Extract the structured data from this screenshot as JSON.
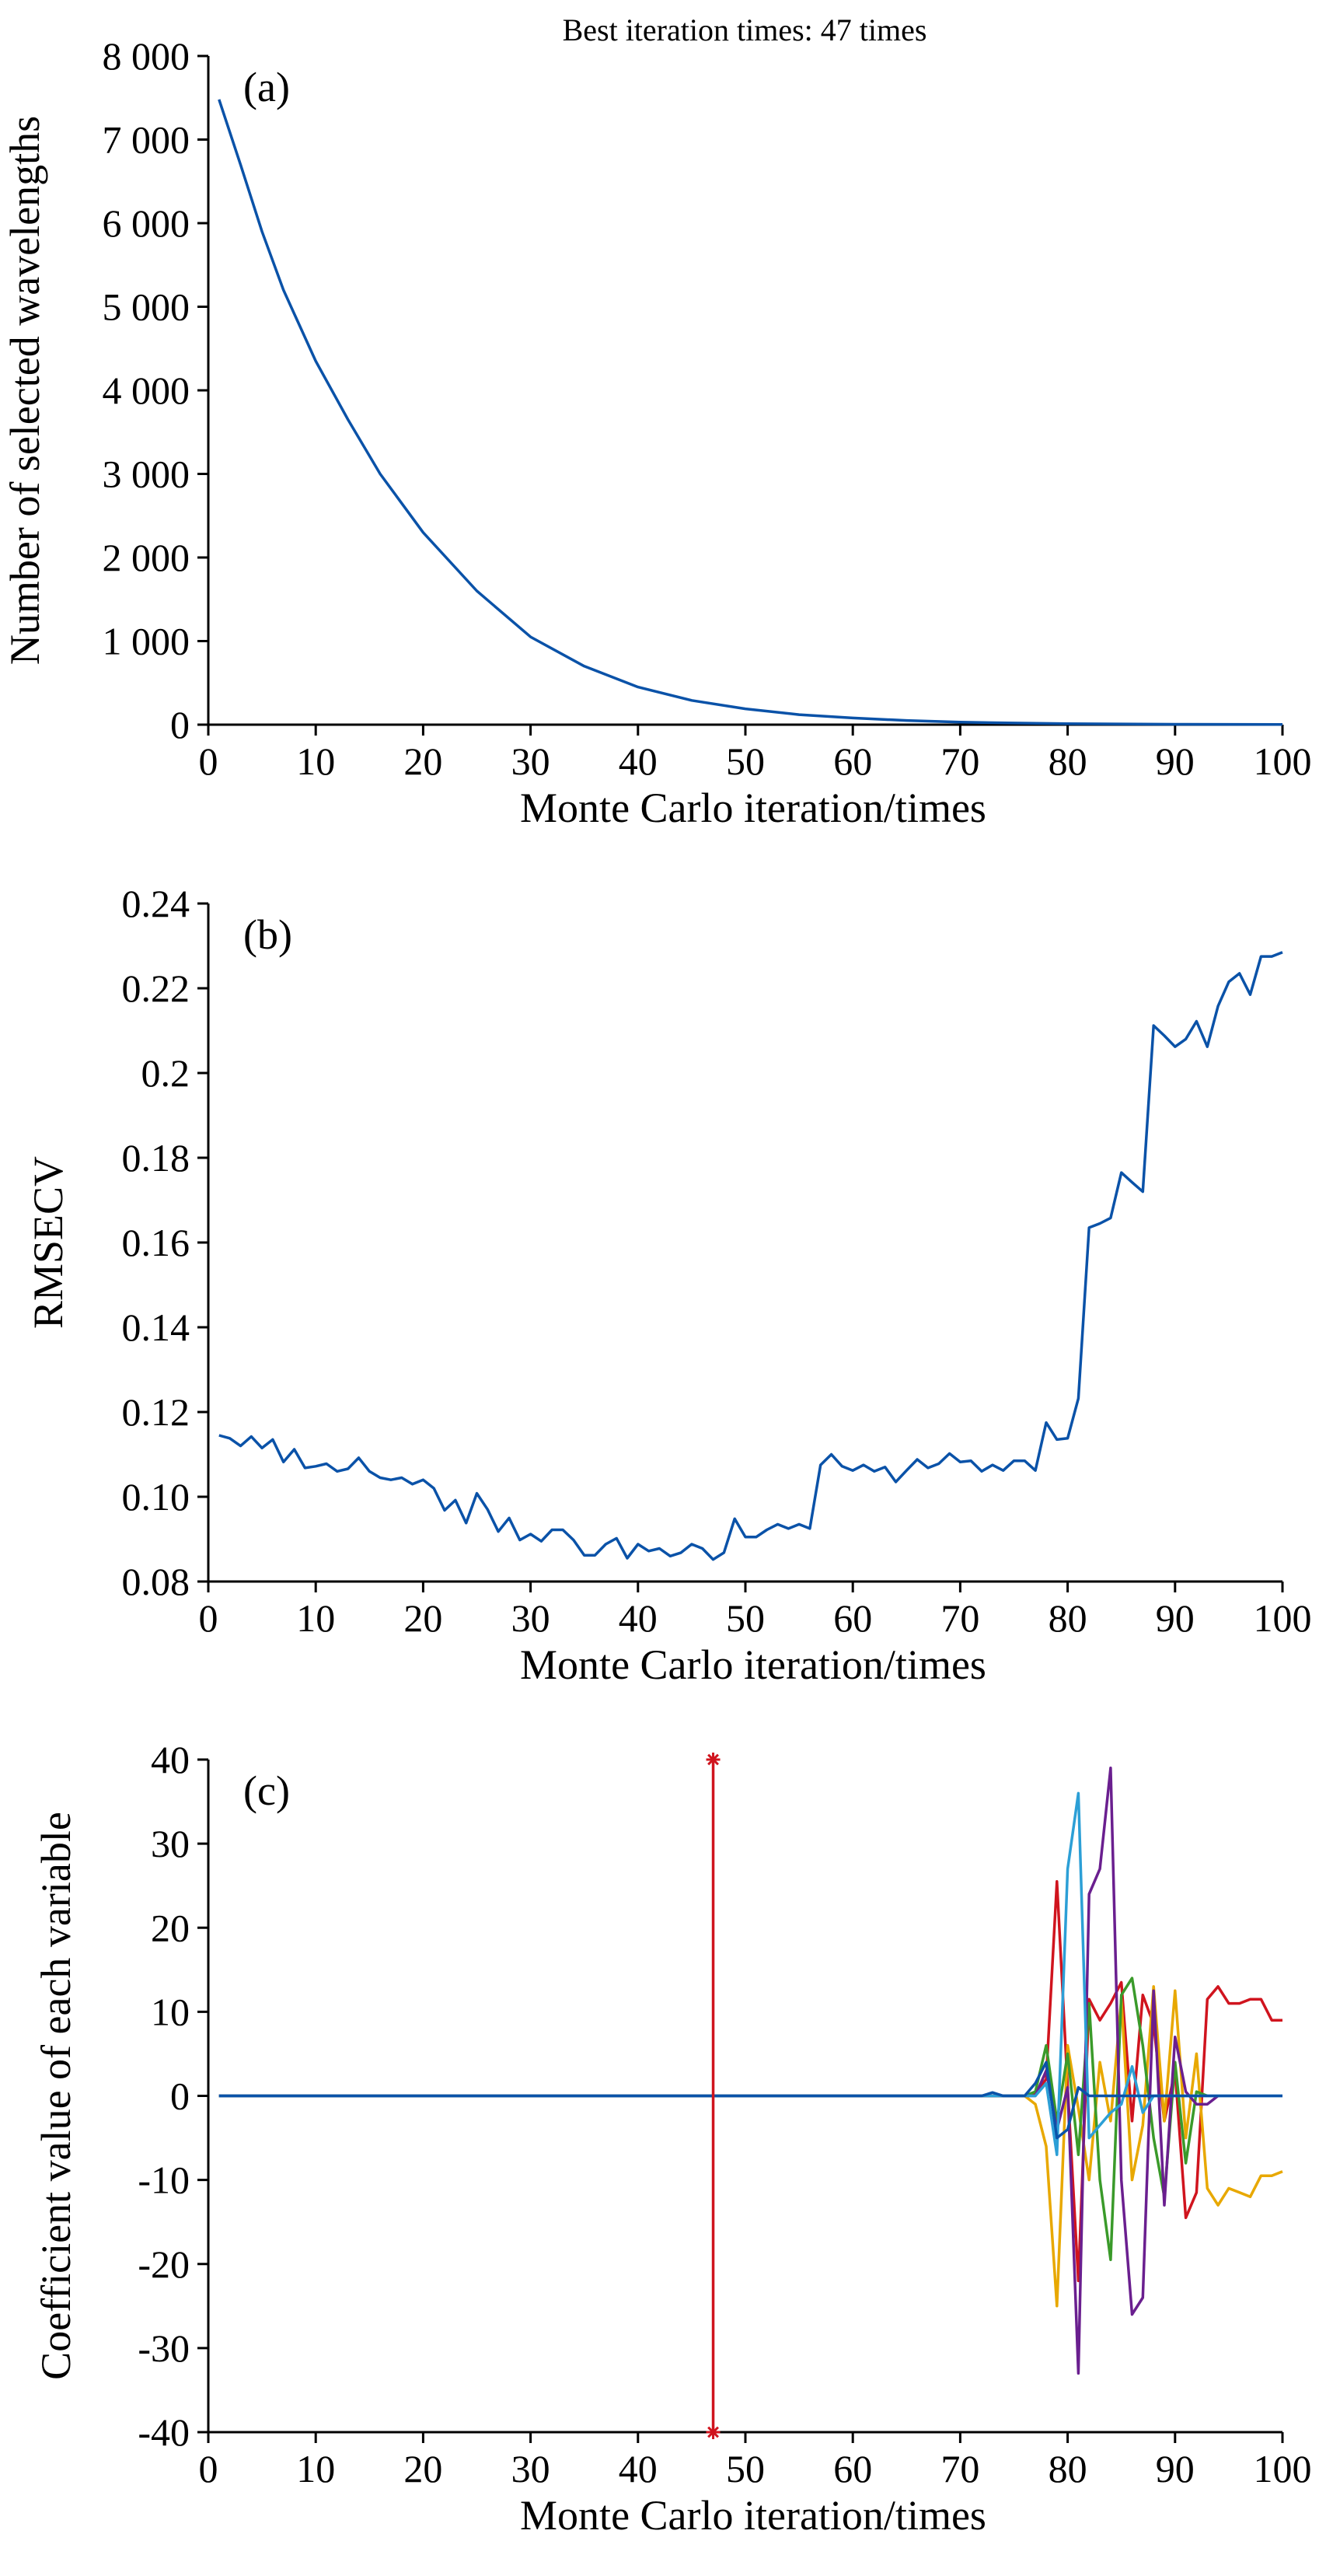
{
  "figure": {
    "top_note": "Best iteration times: 47 times",
    "colors": {
      "series_blue": "#0a52a8",
      "marker_red": "#d0141e",
      "axis": "#000000",
      "c_series": [
        "#d0141e",
        "#e8a800",
        "#3a9a2a",
        "#6a1f8f",
        "#2c9fd6",
        "#0a52a8"
      ]
    }
  },
  "chart_data": [
    {
      "id": "a",
      "panel_label": "(a)",
      "type": "line",
      "xlabel": "Monte Carlo iteration/times",
      "ylabel": "Number of selected wavelengths",
      "xlim": [
        0,
        100
      ],
      "ylim": [
        0,
        8000
      ],
      "xticks": [
        0,
        10,
        20,
        30,
        40,
        50,
        60,
        70,
        80,
        90,
        100
      ],
      "yticks": [
        0,
        1000,
        2000,
        3000,
        4000,
        5000,
        6000,
        7000,
        8000
      ],
      "ytick_labels": [
        "0",
        "1 000",
        "2 000",
        "3 000",
        "4 000",
        "5 000",
        "6 000",
        "7 000",
        "8 000"
      ],
      "grid": false,
      "series": [
        {
          "color": "#0a52a8",
          "x": [
            1,
            3,
            5,
            7,
            10,
            13,
            16,
            20,
            25,
            30,
            35,
            40,
            45,
            50,
            55,
            60,
            65,
            70,
            75,
            80,
            90,
            100
          ],
          "y": [
            7480,
            6700,
            5900,
            5200,
            4350,
            3650,
            3000,
            2300,
            1600,
            1050,
            700,
            450,
            290,
            190,
            120,
            80,
            50,
            30,
            20,
            12,
            5,
            2
          ]
        }
      ]
    },
    {
      "id": "b",
      "panel_label": "(b)",
      "type": "line",
      "xlabel": "Monte Carlo iteration/times",
      "ylabel": "RMSECV",
      "xlim": [
        0,
        100
      ],
      "ylim": [
        0.08,
        0.24
      ],
      "xticks": [
        0,
        10,
        20,
        30,
        40,
        50,
        60,
        70,
        80,
        90,
        100
      ],
      "yticks": [
        0.08,
        0.1,
        0.12,
        0.14,
        0.16,
        0.18,
        0.2,
        0.22,
        0.24
      ],
      "ytick_labels": [
        "0.08",
        "0.10",
        "0.12",
        "0.14",
        "0.16",
        "0.18",
        "0.2",
        "0.22",
        "0.24"
      ],
      "grid": false,
      "series": [
        {
          "color": "#0a52a8",
          "x": [
            1,
            2,
            3,
            4,
            5,
            6,
            7,
            8,
            9,
            10,
            11,
            12,
            13,
            14,
            15,
            16,
            17,
            18,
            19,
            20,
            21,
            22,
            23,
            24,
            25,
            26,
            27,
            28,
            29,
            30,
            31,
            32,
            33,
            34,
            35,
            36,
            37,
            38,
            39,
            40,
            41,
            42,
            43,
            44,
            45,
            46,
            47,
            48,
            49,
            50,
            51,
            52,
            53,
            54,
            55,
            56,
            57,
            58,
            59,
            60,
            61,
            62,
            63,
            64,
            65,
            66,
            67,
            68,
            69,
            70,
            71,
            72,
            73,
            74,
            75,
            76,
            77,
            78,
            79,
            80,
            81,
            82,
            83,
            84,
            85,
            86,
            87,
            88,
            89,
            90,
            91,
            92,
            93,
            94,
            95,
            96,
            97,
            98,
            99,
            100
          ],
          "y": [
            0.1145,
            0.1138,
            0.112,
            0.1142,
            0.1115,
            0.1135,
            0.1082,
            0.1112,
            0.1068,
            0.1072,
            0.1078,
            0.106,
            0.1066,
            0.1092,
            0.106,
            0.1045,
            0.104,
            0.1045,
            0.103,
            0.104,
            0.102,
            0.0968,
            0.0992,
            0.0938,
            0.1008,
            0.097,
            0.0918,
            0.095,
            0.0898,
            0.0912,
            0.0895,
            0.0922,
            0.0922,
            0.0898,
            0.0862,
            0.0862,
            0.0888,
            0.0902,
            0.0855,
            0.0888,
            0.0872,
            0.0878,
            0.086,
            0.0868,
            0.0888,
            0.0878,
            0.0852,
            0.0868,
            0.0948,
            0.0905,
            0.0905,
            0.0922,
            0.0935,
            0.0925,
            0.0935,
            0.0925,
            0.1075,
            0.11,
            0.1072,
            0.1062,
            0.1075,
            0.106,
            0.107,
            0.1035,
            0.1062,
            0.1088,
            0.1068,
            0.1078,
            0.1102,
            0.1082,
            0.1085,
            0.106,
            0.1075,
            0.1062,
            0.1085,
            0.1085,
            0.1062,
            0.1175,
            0.1135,
            0.1138,
            0.1232,
            0.1635,
            0.1645,
            0.1658,
            0.1765,
            0.1742,
            0.172,
            0.2112,
            0.2088,
            0.2062,
            0.208,
            0.2122,
            0.2062,
            0.2158,
            0.2215,
            0.2235,
            0.2185,
            0.2275,
            0.2275,
            0.2285
          ]
        }
      ]
    },
    {
      "id": "c",
      "panel_label": "(c)",
      "type": "line",
      "xlabel": "Monte Carlo iteration/times",
      "ylabel": "Coefficient value of each variable",
      "xlim": [
        0,
        100
      ],
      "ylim": [
        -40,
        40
      ],
      "xticks": [
        0,
        10,
        20,
        30,
        40,
        50,
        60,
        70,
        80,
        90,
        100
      ],
      "yticks": [
        -40,
        -30,
        -20,
        -10,
        0,
        10,
        20,
        30,
        40
      ],
      "ytick_labels": [
        "-40",
        "-30",
        "-20",
        "-10",
        "0",
        "10",
        "20",
        "30",
        "40"
      ],
      "grid": false,
      "best_iteration_marker": {
        "x": 47,
        "y_range": [
          -40,
          40
        ],
        "color": "#d0141e"
      },
      "series": [
        {
          "color": "#d0141e",
          "x": [
            1,
            76,
            77,
            78,
            79,
            80,
            81,
            82,
            83,
            84,
            85,
            86,
            87,
            88,
            89,
            90,
            91,
            92,
            93,
            94,
            95,
            96,
            97,
            98,
            99,
            100
          ],
          "y": [
            0,
            0,
            0.3,
            2,
            25.5,
            1,
            -22,
            11.5,
            9,
            11,
            13.5,
            -3,
            12,
            8.5,
            -3,
            3,
            -14.5,
            -11.5,
            11.5,
            13,
            11,
            11,
            11.5,
            11.5,
            9,
            9
          ]
        },
        {
          "color": "#e8a800",
          "x": [
            1,
            76,
            77,
            78,
            79,
            80,
            81,
            82,
            83,
            84,
            85,
            86,
            87,
            88,
            89,
            90,
            91,
            92,
            93,
            94,
            95,
            96,
            97,
            98,
            99,
            100
          ],
          "y": [
            0,
            0,
            -1,
            -6,
            -25,
            6,
            -1.5,
            -10,
            4,
            -3,
            11.5,
            -10,
            -3.5,
            13,
            -3,
            12.5,
            -5,
            5,
            -11,
            -13,
            -11,
            -11.5,
            -12,
            -9.5,
            -9.5,
            -9
          ]
        },
        {
          "color": "#3a9a2a",
          "x": [
            1,
            76,
            77,
            78,
            79,
            80,
            81,
            82,
            83,
            84,
            85,
            86,
            87,
            88,
            89,
            90,
            91,
            92,
            93
          ],
          "y": [
            0,
            0,
            0.5,
            6,
            -3,
            5,
            -7,
            11,
            -10,
            -19.5,
            12,
            14,
            6,
            -5,
            -12,
            4,
            -8,
            0.5,
            0
          ]
        },
        {
          "color": "#6a1f8f",
          "x": [
            1,
            76,
            77,
            78,
            79,
            80,
            81,
            82,
            83,
            84,
            85,
            86,
            87,
            88,
            89,
            90,
            91,
            92,
            93,
            94
          ],
          "y": [
            0,
            0,
            0,
            3,
            -4,
            1,
            -33,
            24,
            27,
            39,
            -10,
            -26,
            -24,
            12.5,
            -13,
            7,
            0.5,
            -1,
            -1,
            0
          ]
        },
        {
          "color": "#2c9fd6",
          "x": [
            1,
            76,
            77,
            78,
            79,
            80,
            81,
            82,
            83,
            84,
            85,
            86,
            87,
            88,
            89,
            90,
            100
          ],
          "y": [
            0,
            0,
            0,
            1.5,
            -7,
            27,
            36,
            -5,
            -3.5,
            -2,
            -1,
            3.5,
            -2,
            0,
            0,
            0,
            0
          ]
        },
        {
          "color": "#0a52a8",
          "x": [
            1,
            72,
            73,
            74,
            76,
            77,
            78,
            79,
            80,
            81,
            82,
            100
          ],
          "y": [
            0,
            0,
            0.4,
            0,
            0,
            1.5,
            4,
            -5,
            -4,
            1,
            0,
            0
          ]
        }
      ]
    }
  ]
}
